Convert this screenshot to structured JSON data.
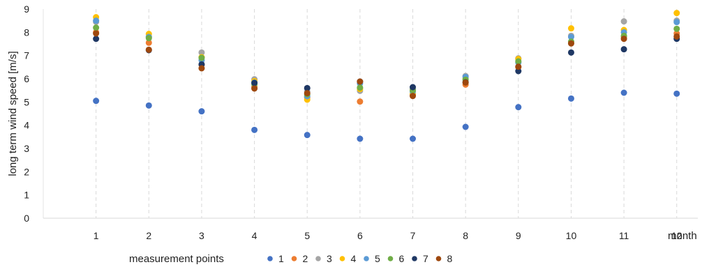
{
  "chart_data": {
    "type": "scatter",
    "title": "",
    "xlabel": "month",
    "ylabel": "long term wind speed [m/s]",
    "xlim": [
      0,
      12.4
    ],
    "ylim": [
      0,
      9
    ],
    "x_ticks": [
      "1",
      "2",
      "3",
      "4",
      "5",
      "6",
      "7",
      "8",
      "9",
      "10",
      "11",
      "12"
    ],
    "y_ticks": [
      "0",
      "1",
      "2",
      "3",
      "4",
      "5",
      "6",
      "7",
      "8",
      "9"
    ],
    "grid": "vertical dashed",
    "legend": {
      "title": "measurement points",
      "placement": "bottom-left"
    },
    "x": [
      1,
      2,
      3,
      4,
      5,
      6,
      7,
      8,
      9,
      10,
      11,
      12
    ],
    "series": [
      {
        "name": "1",
        "color": "#4472c4",
        "values": [
          5.05,
          4.85,
          4.6,
          3.8,
          3.58,
          3.42,
          3.42,
          3.93,
          4.78,
          5.15,
          5.4,
          5.36
        ]
      },
      {
        "name": "2",
        "color": "#ed7d31",
        "values": [
          8.0,
          7.55,
          6.6,
          5.65,
          5.2,
          5.02,
          5.32,
          5.75,
          6.5,
          7.55,
          7.8,
          7.95
        ]
      },
      {
        "name": "3",
        "color": "#a5a5a5",
        "values": [
          8.45,
          7.8,
          7.13,
          5.98,
          5.45,
          5.48,
          5.55,
          6.12,
          6.88,
          7.85,
          8.47,
          8.5
        ]
      },
      {
        "name": "4",
        "color": "#ffc000",
        "values": [
          8.65,
          7.93,
          6.93,
          5.9,
          5.1,
          5.56,
          5.35,
          6.0,
          6.85,
          8.17,
          8.1,
          8.83
        ]
      },
      {
        "name": "5",
        "color": "#5b9bd5",
        "values": [
          8.5,
          7.8,
          6.8,
          5.84,
          5.25,
          5.8,
          5.45,
          6.08,
          6.7,
          7.8,
          8.0,
          8.44
        ]
      },
      {
        "name": "6",
        "color": "#70ad47",
        "values": [
          8.2,
          7.75,
          6.9,
          5.76,
          5.33,
          5.62,
          5.5,
          5.96,
          6.75,
          7.6,
          7.85,
          8.15
        ]
      },
      {
        "name": "7",
        "color": "#1f3864",
        "values": [
          7.72,
          7.23,
          6.62,
          5.82,
          5.6,
          5.88,
          5.64,
          5.85,
          6.33,
          7.13,
          7.27,
          7.72
        ]
      },
      {
        "name": "8",
        "color": "#9e480e",
        "values": [
          7.95,
          7.25,
          6.45,
          5.58,
          5.38,
          5.88,
          5.26,
          5.84,
          6.52,
          7.52,
          7.72,
          7.82
        ]
      }
    ]
  }
}
